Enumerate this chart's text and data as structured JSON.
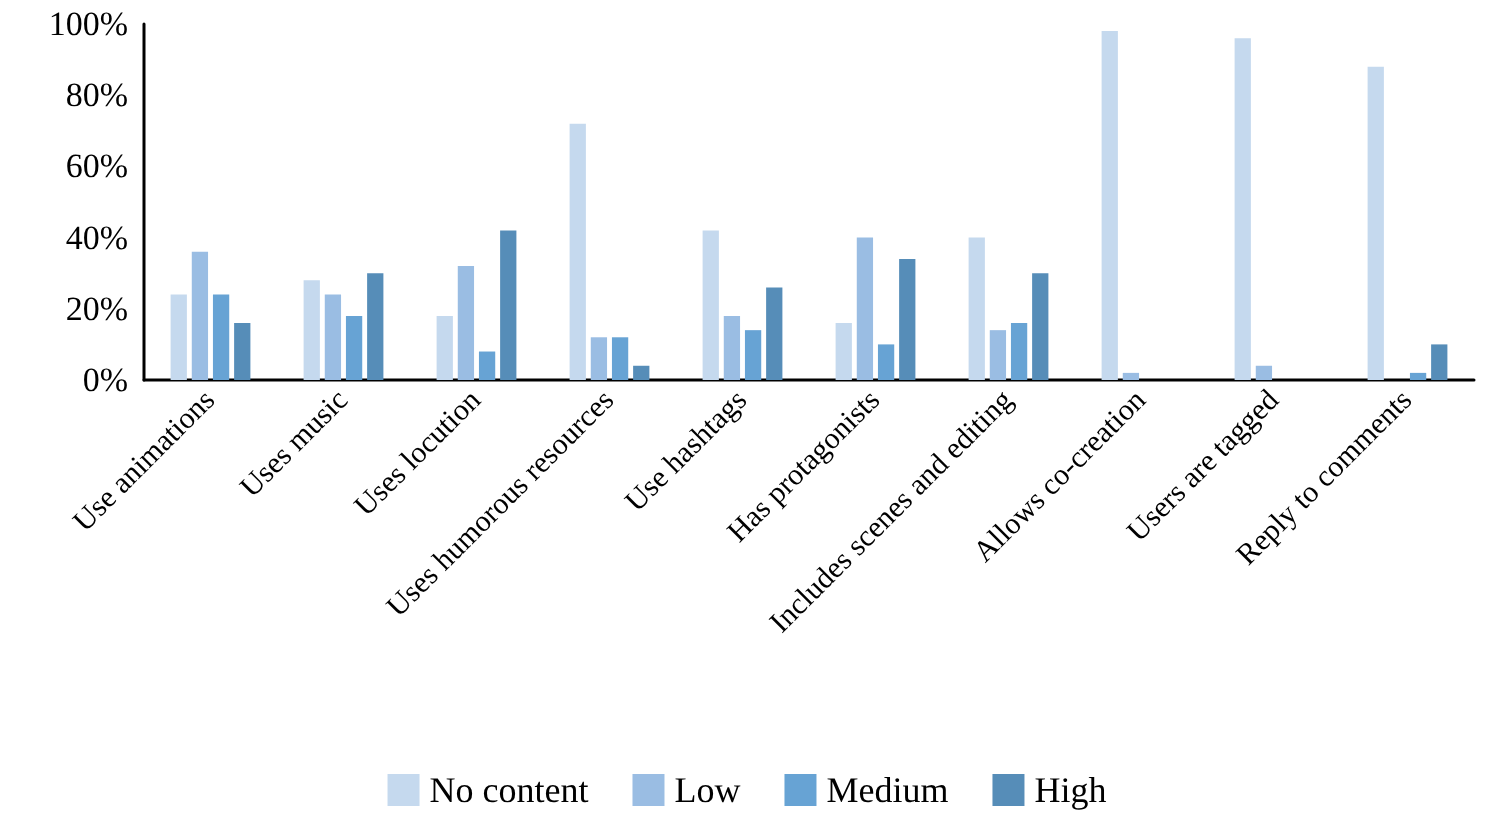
{
  "chart_data": {
    "type": "bar",
    "categories": [
      "Use animations",
      "Uses music",
      "Uses locution",
      "Uses humorous resources",
      "Use hashtags",
      "Has protagonists",
      "Includes scenes and editing",
      "Allows co-creation",
      "Users are tagged",
      "Reply to comments"
    ],
    "series": [
      {
        "name": "No content",
        "color": "#c5d9ee",
        "values": [
          24,
          28,
          18,
          72,
          42,
          16,
          40,
          98,
          96,
          88
        ]
      },
      {
        "name": "Low",
        "color": "#9abde3",
        "values": [
          36,
          24,
          32,
          12,
          18,
          40,
          14,
          2,
          4,
          0
        ]
      },
      {
        "name": "Medium",
        "color": "#67a3d4",
        "values": [
          24,
          18,
          8,
          12,
          14,
          10,
          16,
          0,
          0,
          2
        ]
      },
      {
        "name": "High",
        "color": "#568db8",
        "values": [
          16,
          30,
          42,
          4,
          26,
          34,
          30,
          0,
          0,
          10
        ]
      }
    ],
    "ylim": [
      0,
      100
    ],
    "yticks": [
      {
        "value": 0,
        "label": "0%"
      },
      {
        "value": 20,
        "label": "20%"
      },
      {
        "value": 40,
        "label": "40%"
      },
      {
        "value": 60,
        "label": "60%"
      },
      {
        "value": 80,
        "label": "80%"
      },
      {
        "value": 100,
        "label": "100%"
      }
    ],
    "grid": false,
    "legend": "bottom"
  }
}
